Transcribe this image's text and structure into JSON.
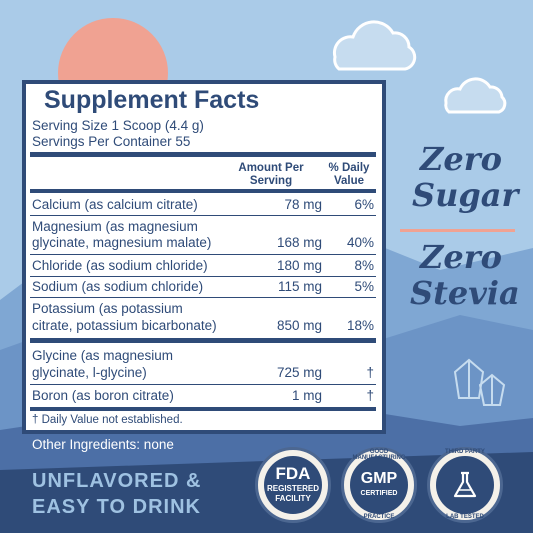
{
  "facts": {
    "title": "Supplement Facts",
    "serving_size": "Serving Size 1 Scoop (4.4 g)",
    "servings_per": "Servings Per Container 55",
    "col_amount": "Amount Per Serving",
    "col_dv": "% Daily Value",
    "rows": [
      {
        "name_line1": "Calcium (as calcium citrate)",
        "name_line2": "",
        "amount": "78 mg",
        "dv": "6%"
      },
      {
        "name_line1": "Magnesium (as magnesium",
        "name_line2": "glycinate, magnesium malate)",
        "amount": "168 mg",
        "dv": "40%"
      },
      {
        "name_line1": "Chloride (as sodium chloride)",
        "name_line2": "",
        "amount": "180 mg",
        "dv": "8%"
      },
      {
        "name_line1": "Sodium (as sodium chloride)",
        "name_line2": "",
        "amount": "115 mg",
        "dv": "5%"
      },
      {
        "name_line1": "Potassium (as potassium",
        "name_line2": "citrate, potassium bicarbonate)",
        "amount": "850 mg",
        "dv": "18%"
      },
      {
        "name_line1": "Glycine (as magnesium",
        "name_line2": "glycinate, l-glycine)",
        "amount": "725 mg",
        "dv": "†"
      },
      {
        "name_line1": "Boron (as boron citrate)",
        "name_line2": "",
        "amount": "1 mg",
        "dv": "†"
      }
    ],
    "footnote": "† Daily Value not established."
  },
  "other_ingredients": "Other Ingredients: none",
  "claims": {
    "zero1": "Zero",
    "sugar": "Sugar",
    "zero2": "Zero",
    "stevia": "Stevia"
  },
  "bottom": {
    "line1": "UNFLAVORED &",
    "line2": "EASY TO DRINK"
  },
  "badges": {
    "fda_1": "FDA",
    "fda_2": "REGISTERED",
    "fda_3": "FACILITY",
    "gmp_top": "GOOD MANUFACTURING",
    "gmp_mid": "GMP",
    "gmp_mid2": "CERTIFIED",
    "gmp_bottom": "PRACTICE",
    "lab_top": "THIRD PARTY",
    "lab_bottom": "LAB TESTED"
  },
  "colors": {
    "sky": "#aacbe8",
    "navy": "#2f4b78",
    "sun": "#f0a292",
    "accent_rule": "#f0a292"
  },
  "icons": [
    "sun-icon",
    "cloud-icon",
    "mountain-icon",
    "crystal-icon",
    "flask-icon"
  ]
}
